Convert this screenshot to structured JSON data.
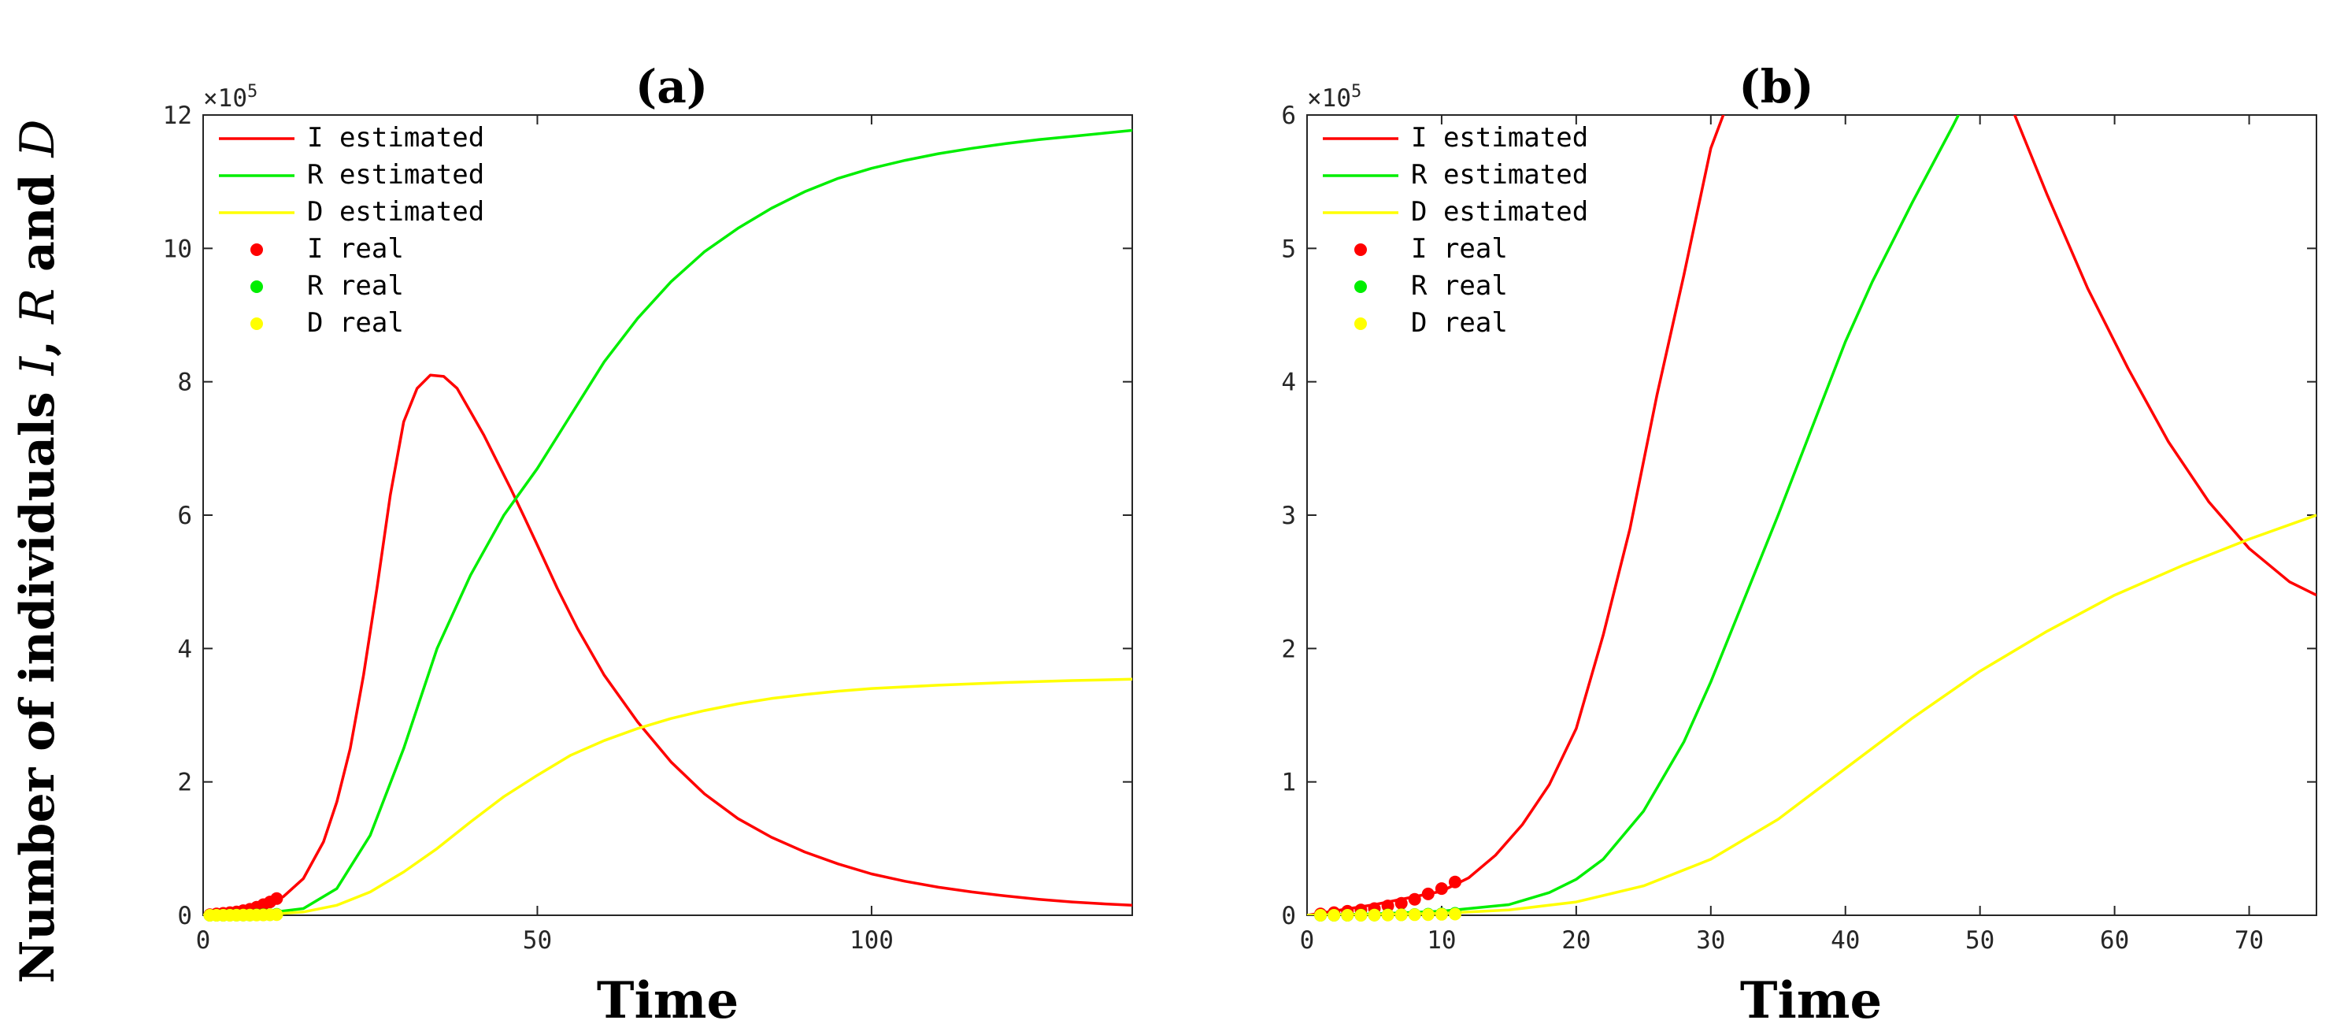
{
  "figure": {
    "ylabel_prefix": "Number of individuals ",
    "ylabel_I": "I",
    "ylabel_sep1": ", ",
    "ylabel_R": "R",
    "ylabel_and": " and ",
    "ylabel_D": "D"
  },
  "chart_data": [
    {
      "type": "line",
      "title": "(a)",
      "xlabel": "Time",
      "ylabel": "Number of individuals I, R and D",
      "xlim": [
        0,
        139
      ],
      "ylim": [
        0,
        1200000
      ],
      "xticks": [
        0,
        50,
        100
      ],
      "xtick_labels": [
        "0",
        "50",
        "100"
      ],
      "yticks": [
        0,
        200000,
        400000,
        600000,
        800000,
        1000000,
        1200000
      ],
      "ytick_labels": [
        "0",
        "2",
        "4",
        "6",
        "8",
        "10",
        "12"
      ],
      "exponent_label": "×10",
      "exponent_power": "5",
      "legend_location": "top-left",
      "series": [
        {
          "name": "I estimated",
          "kind": "line",
          "color": "#ff0000",
          "x": [
            0,
            5,
            10,
            12,
            15,
            18,
            20,
            22,
            24,
            26,
            28,
            30,
            32,
            34,
            36,
            38,
            40,
            42,
            44,
            46,
            48,
            50,
            53,
            56,
            60,
            65,
            70,
            75,
            80,
            85,
            90,
            95,
            100,
            105,
            110,
            115,
            120,
            125,
            130,
            135,
            139
          ],
          "y": [
            0,
            8000,
            18000,
            28000,
            55000,
            110000,
            170000,
            250000,
            360000,
            490000,
            630000,
            740000,
            790000,
            810000,
            808000,
            790000,
            755000,
            720000,
            680000,
            640000,
            598000,
            555000,
            490000,
            430000,
            360000,
            290000,
            230000,
            182000,
            145000,
            117000,
            95000,
            77000,
            62000,
            51000,
            42000,
            35000,
            29000,
            24000,
            20000,
            17000,
            15000
          ]
        },
        {
          "name": "R estimated",
          "kind": "line",
          "color": "#00ee00",
          "x": [
            0,
            5,
            10,
            15,
            20,
            25,
            30,
            35,
            40,
            45,
            50,
            55,
            60,
            65,
            70,
            75,
            80,
            85,
            90,
            95,
            100,
            105,
            110,
            115,
            120,
            125,
            130,
            135,
            139
          ],
          "y": [
            0,
            2000,
            4000,
            10000,
            40000,
            120000,
            250000,
            400000,
            510000,
            600000,
            670000,
            750000,
            830000,
            895000,
            950000,
            995000,
            1030000,
            1060000,
            1085000,
            1105000,
            1120000,
            1132000,
            1142000,
            1150000,
            1157000,
            1163000,
            1168000,
            1173000,
            1177000
          ]
        },
        {
          "name": "D estimated",
          "kind": "line",
          "color": "#ffff00",
          "x": [
            0,
            5,
            10,
            15,
            20,
            25,
            30,
            35,
            40,
            45,
            50,
            55,
            60,
            65,
            70,
            75,
            80,
            85,
            90,
            95,
            100,
            110,
            120,
            130,
            139
          ],
          "y": [
            0,
            500,
            1500,
            5000,
            15000,
            35000,
            65000,
            100000,
            140000,
            178000,
            210000,
            240000,
            262000,
            280000,
            295000,
            307000,
            317000,
            325000,
            331000,
            336000,
            340000,
            345000,
            349000,
            352000,
            354000
          ]
        },
        {
          "name": "I real",
          "kind": "points",
          "color": "#ff0000",
          "x": [
            1,
            2,
            3,
            4,
            5,
            6,
            7,
            8,
            9,
            10,
            11
          ],
          "y": [
            1000,
            2000,
            3000,
            4000,
            5000,
            7000,
            9000,
            12000,
            16000,
            20000,
            25000
          ]
        },
        {
          "name": "R real",
          "kind": "points",
          "color": "#00ee00",
          "x": [
            1,
            2,
            3,
            4,
            5,
            6,
            7,
            8,
            9,
            10,
            11
          ],
          "y": [
            0,
            0,
            0,
            100,
            200,
            300,
            400,
            600,
            800,
            1000,
            1500
          ]
        },
        {
          "name": "D real",
          "kind": "points",
          "color": "#ffff00",
          "x": [
            1,
            2,
            3,
            4,
            5,
            6,
            7,
            8,
            9,
            10,
            11
          ],
          "y": [
            0,
            0,
            0,
            0,
            100,
            200,
            300,
            400,
            500,
            700,
            900
          ]
        }
      ]
    },
    {
      "type": "line",
      "title": "(b)",
      "xlabel": "Time",
      "ylabel": "",
      "xlim": [
        0,
        75
      ],
      "ylim": [
        0,
        600000
      ],
      "xticks": [
        0,
        10,
        20,
        30,
        40,
        50,
        60,
        70
      ],
      "xtick_labels": [
        "0",
        "10",
        "20",
        "30",
        "40",
        "50",
        "60",
        "70"
      ],
      "yticks": [
        0,
        100000,
        200000,
        300000,
        400000,
        500000,
        600000
      ],
      "ytick_labels": [
        "0",
        "1",
        "2",
        "3",
        "4",
        "5",
        "6"
      ],
      "exponent_label": "×10",
      "exponent_power": "5",
      "legend_location": "top-left",
      "series": [
        {
          "name": "I estimated",
          "kind": "line",
          "color": "#ff0000",
          "x": [
            0,
            5,
            10,
            12,
            14,
            16,
            18,
            20,
            22,
            24,
            26,
            28,
            30,
            31,
            52.5,
            55,
            58,
            61,
            64,
            67,
            70,
            73,
            75
          ],
          "y": [
            0,
            8000,
            18000,
            28000,
            45000,
            68000,
            98000,
            140000,
            210000,
            290000,
            390000,
            480000,
            575000,
            602000,
            602000,
            540000,
            470000,
            410000,
            355000,
            310000,
            275000,
            250000,
            240000
          ]
        },
        {
          "name": "R estimated",
          "kind": "line",
          "color": "#00ee00",
          "x": [
            0,
            5,
            10,
            15,
            18,
            20,
            22,
            25,
            28,
            30,
            32,
            35,
            38,
            40,
            42,
            45,
            48,
            48.5
          ],
          "y": [
            0,
            1000,
            3000,
            8000,
            17000,
            27000,
            42000,
            78000,
            130000,
            175000,
            225000,
            300000,
            378000,
            430000,
            475000,
            535000,
            592000,
            602000
          ]
        },
        {
          "name": "D estimated",
          "kind": "line",
          "color": "#ffff00",
          "x": [
            0,
            5,
            10,
            15,
            20,
            25,
            30,
            35,
            40,
            45,
            50,
            55,
            60,
            65,
            70,
            75
          ],
          "y": [
            0,
            500,
            1500,
            4000,
            10000,
            22000,
            42000,
            72000,
            110000,
            148000,
            183000,
            213000,
            240000,
            262000,
            282000,
            300000
          ]
        },
        {
          "name": "I real",
          "kind": "points",
          "color": "#ff0000",
          "x": [
            1,
            2,
            3,
            4,
            5,
            6,
            7,
            8,
            9,
            10,
            11
          ],
          "y": [
            1000,
            2000,
            3000,
            4000,
            5000,
            7000,
            9000,
            12000,
            16000,
            20000,
            25000
          ]
        },
        {
          "name": "R real",
          "kind": "points",
          "color": "#00ee00",
          "x": [
            1,
            2,
            3,
            4,
            5,
            6,
            7,
            8,
            9,
            10,
            11
          ],
          "y": [
            0,
            0,
            0,
            100,
            200,
            300,
            400,
            600,
            800,
            1000,
            1500
          ]
        },
        {
          "name": "D real",
          "kind": "points",
          "color": "#ffff00",
          "x": [
            1,
            2,
            3,
            4,
            5,
            6,
            7,
            8,
            9,
            10,
            11
          ],
          "y": [
            0,
            0,
            0,
            0,
            100,
            200,
            300,
            400,
            500,
            700,
            900
          ]
        }
      ]
    }
  ]
}
